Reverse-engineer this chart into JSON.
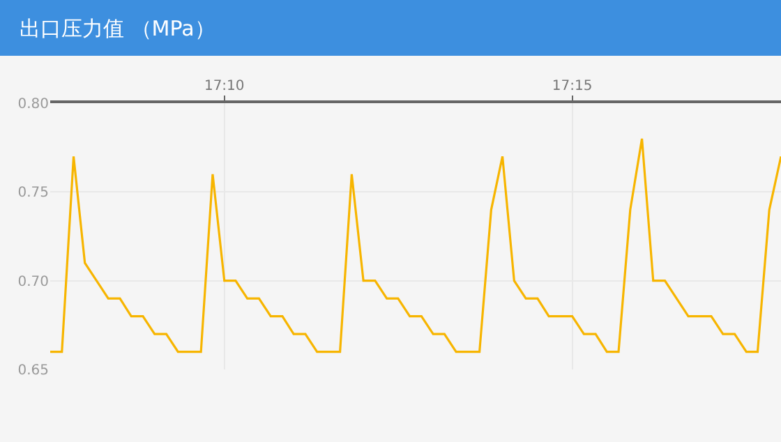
{
  "chart_data": {
    "type": "line",
    "title": "出口压力值 （MPa）",
    "x": [
      17.125,
      17.1278,
      17.1306,
      17.1333,
      17.1361,
      17.1389,
      17.1417,
      17.1444,
      17.1472,
      17.15,
      17.1528,
      17.1556,
      17.1583,
      17.1611,
      17.1639,
      17.1667,
      17.1694,
      17.1722,
      17.175,
      17.1778,
      17.1806,
      17.1833,
      17.1861,
      17.1889,
      17.1917,
      17.1944,
      17.1972,
      17.2,
      17.2028,
      17.2056,
      17.2083,
      17.2111,
      17.2139,
      17.2167,
      17.2194,
      17.2222,
      17.225,
      17.2278,
      17.2306,
      17.2333,
      17.2361,
      17.2389,
      17.2417,
      17.2444,
      17.2472,
      17.25,
      17.2528,
      17.2556,
      17.2583,
      17.2611,
      17.2639,
      17.2667,
      17.2694,
      17.2722,
      17.275,
      17.2778,
      17.2806,
      17.2833,
      17.2861,
      17.2889,
      17.2917,
      17.2944,
      17.2972,
      17.3
    ],
    "series": [
      {
        "color": "#f7b500",
        "values": [
          0.66,
          0.66,
          0.77,
          0.71,
          0.7,
          0.69,
          0.69,
          0.68,
          0.68,
          0.67,
          0.67,
          0.66,
          0.66,
          0.66,
          0.76,
          0.7,
          0.7,
          0.69,
          0.69,
          0.68,
          0.68,
          0.67,
          0.67,
          0.66,
          0.66,
          0.66,
          0.76,
          0.7,
          0.7,
          0.69,
          0.69,
          0.68,
          0.68,
          0.67,
          0.67,
          0.66,
          0.66,
          0.66,
          0.74,
          0.77,
          0.7,
          0.69,
          0.69,
          0.68,
          0.68,
          0.68,
          0.67,
          0.67,
          0.66,
          0.66,
          0.74,
          0.78,
          0.7,
          0.7,
          0.69,
          0.68,
          0.68,
          0.68,
          0.67,
          0.67,
          0.66,
          0.66,
          0.74,
          0.77
        ]
      }
    ],
    "xlim": [
      17.125,
      17.3
    ],
    "xticks": [
      {
        "value": 17.1667,
        "label": "17:10"
      },
      {
        "value": 17.25,
        "label": "17:15"
      }
    ],
    "ylim": [
      0.65,
      0.8
    ],
    "yticks": [
      {
        "value": 0.65,
        "label": "0.65"
      },
      {
        "value": 0.7,
        "label": "0.70"
      },
      {
        "value": 0.75,
        "label": "0.75"
      },
      {
        "value": 0.8,
        "label": "0.80"
      }
    ],
    "grid": true,
    "marker": "none",
    "line_style": "solid"
  }
}
